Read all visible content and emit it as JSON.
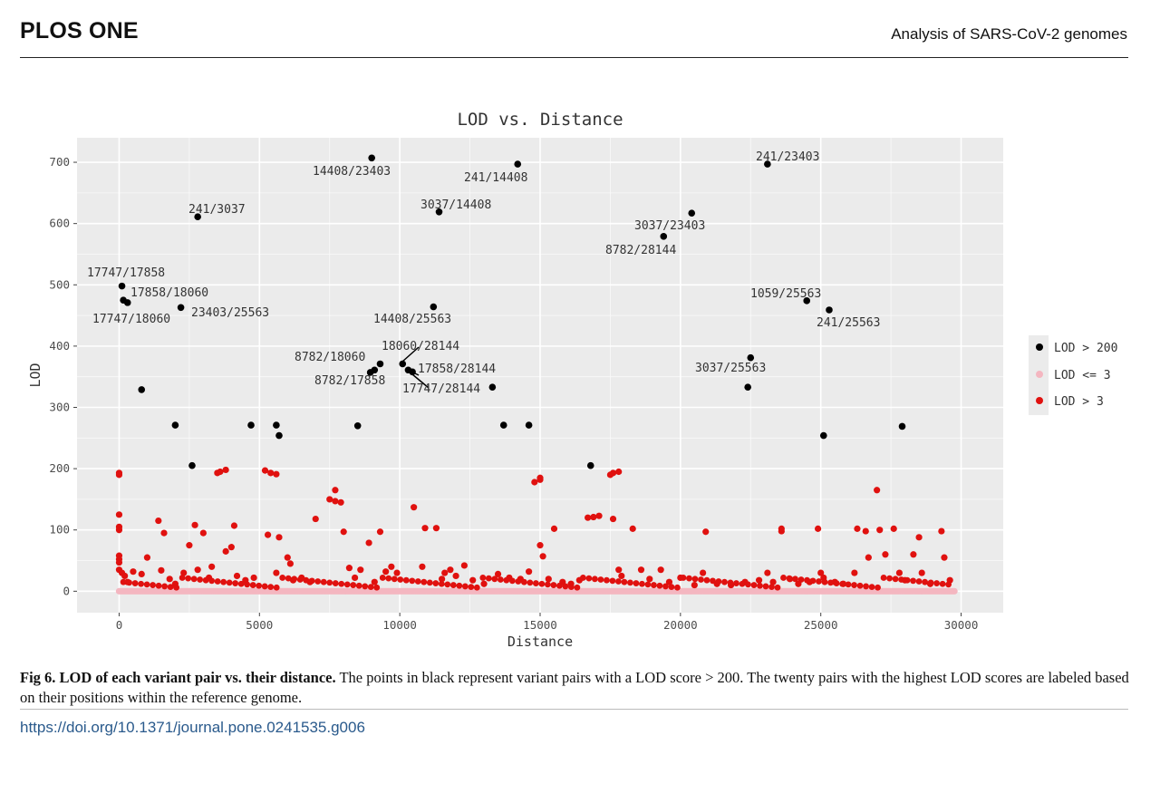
{
  "header": {
    "journal": "PLOS ONE",
    "running_title": "Analysis of SARS-CoV-2 genomes"
  },
  "caption": {
    "lead": "Fig 6.  LOD of each variant pair vs. their distance.",
    "body": " The points in black represent variant pairs with a LOD score > 200. The twenty pairs with the highest LOD scores are labeled based on their positions within the reference genome."
  },
  "doi": "https://doi.org/10.1371/journal.pone.0241535.g006",
  "chart_data": {
    "type": "scatter",
    "title": "LOD vs. Distance",
    "xlabel": "Distance",
    "ylabel": "LOD",
    "xlim": [
      -1500,
      31500
    ],
    "ylim": [
      -35,
      740
    ],
    "xticks": [
      0,
      5000,
      10000,
      15000,
      20000,
      25000,
      30000
    ],
    "yticks": [
      0,
      100,
      200,
      300,
      400,
      500,
      600,
      700
    ],
    "grid": true,
    "legend_position": "right",
    "colors": {
      "panel": "#ebebeb",
      "black": "#000000",
      "pink": "#f4b6c0",
      "red": "#e0110f"
    },
    "series": [
      {
        "name": "LOD > 200",
        "color": "#000000",
        "points": [
          [
            9000,
            707
          ],
          [
            14200,
            697
          ],
          [
            23100,
            697
          ],
          [
            2800,
            611
          ],
          [
            11400,
            619
          ],
          [
            20400,
            617
          ],
          [
            19400,
            579
          ],
          [
            100,
            498
          ],
          [
            150,
            475
          ],
          [
            300,
            471
          ],
          [
            2200,
            463
          ],
          [
            11200,
            464
          ],
          [
            24500,
            474
          ],
          [
            25300,
            459
          ],
          [
            10100,
            371
          ],
          [
            9300,
            371
          ],
          [
            9100,
            361
          ],
          [
            8950,
            357
          ],
          [
            10300,
            361
          ],
          [
            10450,
            358
          ],
          [
            22500,
            381
          ],
          [
            800,
            329
          ],
          [
            13300,
            333
          ],
          [
            22400,
            333
          ],
          [
            2000,
            271
          ],
          [
            4700,
            271
          ],
          [
            5600,
            271
          ],
          [
            8500,
            270
          ],
          [
            13700,
            271
          ],
          [
            14600,
            271
          ],
          [
            27900,
            269
          ],
          [
            5700,
            254
          ],
          [
            25100,
            254
          ],
          [
            2600,
            205
          ],
          [
            16800,
            205
          ]
        ]
      },
      {
        "name": "LOD <= 3",
        "color": "#f4b6c0",
        "range": [
          0,
          29800
        ],
        "value": 0
      },
      {
        "name": "LOD > 3",
        "color": "#e0110f",
        "points": [
          [
            0,
            193
          ],
          [
            0,
            190
          ],
          [
            0,
            125
          ],
          [
            0,
            105
          ],
          [
            0,
            100
          ],
          [
            0,
            58
          ],
          [
            0,
            52
          ],
          [
            0,
            47
          ],
          [
            0,
            35
          ],
          [
            100,
            30
          ],
          [
            200,
            25
          ],
          [
            300,
            15
          ],
          [
            500,
            32
          ],
          [
            800,
            28
          ],
          [
            1000,
            55
          ],
          [
            1400,
            115
          ],
          [
            1500,
            34
          ],
          [
            1600,
            95
          ],
          [
            1800,
            20
          ],
          [
            2000,
            12
          ],
          [
            2300,
            30
          ],
          [
            2500,
            75
          ],
          [
            2700,
            108
          ],
          [
            2800,
            35
          ],
          [
            3000,
            95
          ],
          [
            3200,
            22
          ],
          [
            3300,
            40
          ],
          [
            3500,
            193
          ],
          [
            3600,
            195
          ],
          [
            3800,
            198
          ],
          [
            3800,
            65
          ],
          [
            4000,
            72
          ],
          [
            4100,
            107
          ],
          [
            4200,
            25
          ],
          [
            4500,
            18
          ],
          [
            4800,
            22
          ],
          [
            5200,
            197
          ],
          [
            5400,
            193
          ],
          [
            5600,
            191
          ],
          [
            5300,
            92
          ],
          [
            5700,
            88
          ],
          [
            5600,
            30
          ],
          [
            6000,
            55
          ],
          [
            6100,
            45
          ],
          [
            6200,
            18
          ],
          [
            6500,
            22
          ],
          [
            6800,
            15
          ],
          [
            7000,
            118
          ],
          [
            7500,
            150
          ],
          [
            7700,
            165
          ],
          [
            7700,
            147
          ],
          [
            7900,
            145
          ],
          [
            8000,
            97
          ],
          [
            8200,
            38
          ],
          [
            8400,
            22
          ],
          [
            8600,
            35
          ],
          [
            8900,
            79
          ],
          [
            9100,
            15
          ],
          [
            9300,
            97
          ],
          [
            9500,
            32
          ],
          [
            9700,
            40
          ],
          [
            9900,
            30
          ],
          [
            10500,
            137
          ],
          [
            10800,
            40
          ],
          [
            10900,
            103
          ],
          [
            11300,
            103
          ],
          [
            11500,
            20
          ],
          [
            11600,
            30
          ],
          [
            11800,
            35
          ],
          [
            12000,
            25
          ],
          [
            12300,
            42
          ],
          [
            12600,
            18
          ],
          [
            13000,
            12
          ],
          [
            13500,
            28
          ],
          [
            13900,
            22
          ],
          [
            14300,
            20
          ],
          [
            14600,
            32
          ],
          [
            14800,
            178
          ],
          [
            15000,
            182
          ],
          [
            15000,
            185
          ],
          [
            15000,
            75
          ],
          [
            15100,
            57
          ],
          [
            15300,
            20
          ],
          [
            15500,
            102
          ],
          [
            15800,
            15
          ],
          [
            16100,
            12
          ],
          [
            16400,
            18
          ],
          [
            16700,
            120
          ],
          [
            16900,
            121
          ],
          [
            17100,
            123
          ],
          [
            17500,
            190
          ],
          [
            17600,
            193
          ],
          [
            17800,
            195
          ],
          [
            17600,
            118
          ],
          [
            17800,
            35
          ],
          [
            17900,
            25
          ],
          [
            18300,
            102
          ],
          [
            18600,
            35
          ],
          [
            18900,
            20
          ],
          [
            19300,
            35
          ],
          [
            19600,
            15
          ],
          [
            20000,
            22
          ],
          [
            20500,
            10
          ],
          [
            20800,
            30
          ],
          [
            20900,
            97
          ],
          [
            21300,
            12
          ],
          [
            21800,
            10
          ],
          [
            22300,
            15
          ],
          [
            22800,
            18
          ],
          [
            23100,
            30
          ],
          [
            23300,
            15
          ],
          [
            23600,
            102
          ],
          [
            23600,
            98
          ],
          [
            23900,
            20
          ],
          [
            24200,
            12
          ],
          [
            24600,
            15
          ],
          [
            24900,
            102
          ],
          [
            25000,
            30
          ],
          [
            25100,
            22
          ],
          [
            25500,
            15
          ],
          [
            25800,
            12
          ],
          [
            26200,
            30
          ],
          [
            26300,
            102
          ],
          [
            26600,
            98
          ],
          [
            26700,
            55
          ],
          [
            27000,
            165
          ],
          [
            27100,
            100
          ],
          [
            27300,
            60
          ],
          [
            27600,
            102
          ],
          [
            27800,
            30
          ],
          [
            28000,
            18
          ],
          [
            28300,
            60
          ],
          [
            28500,
            88
          ],
          [
            28600,
            30
          ],
          [
            28900,
            12
          ],
          [
            29300,
            98
          ],
          [
            29400,
            55
          ],
          [
            29600,
            18
          ]
        ]
      }
    ],
    "annotations": [
      {
        "text": "14408/23403"
      },
      {
        "text": "241/14408"
      },
      {
        "text": "241/23403"
      },
      {
        "text": "241/3037"
      },
      {
        "text": "3037/14408"
      },
      {
        "text": "3037/23403"
      },
      {
        "text": "8782/28144"
      },
      {
        "text": "17747/17858"
      },
      {
        "text": "17858/18060"
      },
      {
        "text": "17747/18060"
      },
      {
        "text": "23403/25563"
      },
      {
        "text": "14408/25563"
      },
      {
        "text": "1059/25563"
      },
      {
        "text": "241/25563"
      },
      {
        "text": "18060/28144"
      },
      {
        "text": "8782/18060"
      },
      {
        "text": "17858/28144"
      },
      {
        "text": "8782/17858"
      },
      {
        "text": "17747/28144"
      },
      {
        "text": "3037/25563"
      }
    ]
  }
}
